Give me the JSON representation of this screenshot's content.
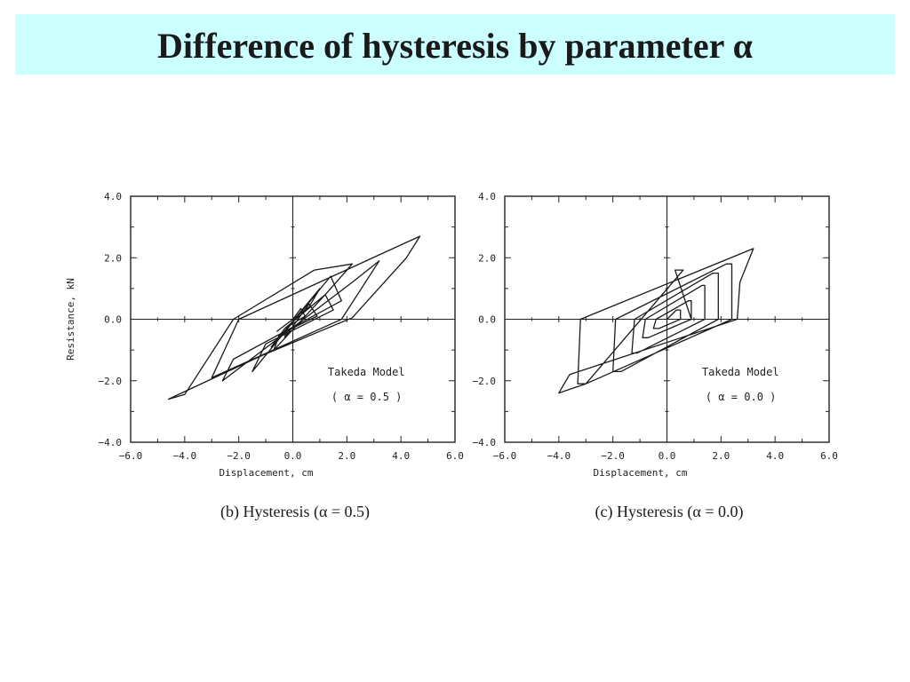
{
  "slide": {
    "title": "Difference of hysteresis by parameter α"
  },
  "chart_data": [
    {
      "type": "line",
      "model_label": "Takeda Model",
      "param_label": "( α = 0.5 )",
      "caption": "(b) Hysteresis (α = 0.5)",
      "xlabel": "Displacement,  cm",
      "ylabel": "Resistance,  kN",
      "xlim": [
        -6.0,
        6.0
      ],
      "ylim": [
        -4.0,
        4.0
      ],
      "x_ticks": [
        "−6.0",
        "−4.0",
        "−2.0",
        "0.0",
        "2.0",
        "4.0",
        "6.0"
      ],
      "y_ticks": [
        "−4.0",
        "−2.0",
        "0.0",
        "2.0",
        "4.0"
      ],
      "series": [
        {
          "x": [
            0,
            0.3,
            0.45,
            -0.2,
            -0.3,
            0.6,
            0.9,
            -0.5,
            -0.7,
            1.2,
            1.5,
            -1.0,
            -1.5,
            1.4,
            1.8,
            -2.2,
            -2.6,
            2.2,
            3.2,
            1.8,
            -3.0,
            -2.0,
            4.7,
            4.2,
            2.2,
            -1.2,
            -4.6,
            -4.0,
            -2.2,
            0.8,
            2.2,
            1.2,
            -0.3,
            -0.8,
            1.0,
            0.6,
            -0.6
          ],
          "y": [
            0,
            0.35,
            0.1,
            -0.25,
            -0.6,
            0.5,
            0.1,
            -0.5,
            -1.0,
            0.8,
            0.3,
            -0.8,
            -1.7,
            1.4,
            0.6,
            -1.3,
            -2.0,
            1.2,
            1.9,
            0.0,
            -1.9,
            0.0,
            2.7,
            2.0,
            0.05,
            -1.2,
            -2.6,
            -2.45,
            0.0,
            1.6,
            1.8,
            0.8,
            -0.3,
            -0.9,
            1.0,
            0.4,
            -0.4
          ]
        }
      ]
    },
    {
      "type": "line",
      "model_label": "Takeda Model",
      "param_label": "( α = 0.0 )",
      "caption": "(c) Hysteresis (α = 0.0)",
      "xlabel": "Displacement,  cm",
      "ylabel": "",
      "xlim": [
        -6.0,
        6.0
      ],
      "ylim": [
        -4.0,
        4.0
      ],
      "x_ticks": [
        "−6.0",
        "−4.0",
        "−2.0",
        "0.0",
        "2.0",
        "4.0",
        "6.0"
      ],
      "y_ticks": [
        "−4.0",
        "−2.0",
        "0.0",
        "2.0",
        "4.0"
      ],
      "series": [
        {
          "x": [
            0,
            0.35,
            0.5,
            0.5,
            -0.3,
            -0.5,
            -0.4,
            0.8,
            0.9,
            0.9,
            -0.7,
            -0.9,
            -0.8,
            1.3,
            1.4,
            1.4,
            -1.1,
            -1.3,
            -1.2,
            1.7,
            1.9,
            1.9,
            -1.7,
            -2.0,
            -1.9,
            2.2,
            2.4,
            2.4,
            -3.0,
            -3.3,
            -3.2,
            3.2,
            2.7,
            2.6,
            -3.6,
            -4.0,
            -3.0,
            0.6,
            0.3,
            0.9
          ],
          "y": [
            0,
            0.3,
            0.3,
            0.0,
            -0.3,
            -0.3,
            0.0,
            0.6,
            0.6,
            0.0,
            -0.6,
            -0.6,
            0.0,
            1.1,
            1.1,
            0.0,
            -1.1,
            -1.1,
            0.0,
            1.5,
            1.5,
            0.0,
            -1.7,
            -1.7,
            0.0,
            1.8,
            1.8,
            0.0,
            -2.1,
            -2.1,
            0.0,
            2.3,
            1.2,
            0.0,
            -1.8,
            -2.4,
            -2.1,
            1.6,
            1.6,
            0.0
          ]
        }
      ]
    }
  ]
}
